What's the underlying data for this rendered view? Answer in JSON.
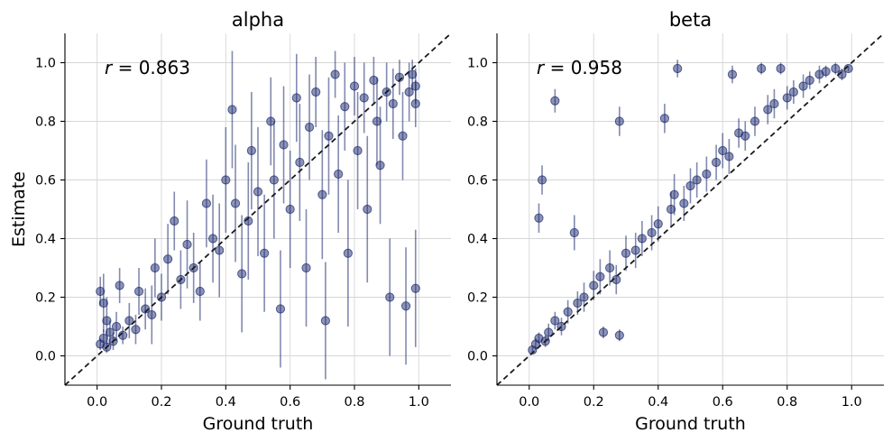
{
  "colors": {
    "points": "#1c2a6e",
    "identity_line": "#1a1a1a",
    "grid": "#d6d6d6"
  },
  "chart_data": [
    {
      "type": "scatter",
      "title": "alpha",
      "xlabel": "Ground truth",
      "ylabel": "Estimate",
      "xlim": [
        -0.1,
        1.1
      ],
      "ylim": [
        -0.1,
        1.1
      ],
      "xticks": [
        "0.0",
        "0.2",
        "0.4",
        "0.6",
        "0.8",
        "1.0"
      ],
      "yticks": [
        "0.0",
        "0.2",
        "0.4",
        "0.6",
        "0.8",
        "1.0"
      ],
      "grid": true,
      "identity_line": true,
      "annotation": {
        "var": "r",
        "text": " = 0.863"
      },
      "points": [
        [
          0.01,
          0.22,
          0.05
        ],
        [
          0.01,
          0.04,
          0.02
        ],
        [
          0.02,
          0.18,
          0.1
        ],
        [
          0.02,
          0.06,
          0.03
        ],
        [
          0.03,
          0.12,
          0.08
        ],
        [
          0.03,
          0.03,
          0.02
        ],
        [
          0.04,
          0.08,
          0.04
        ],
        [
          0.05,
          0.05,
          0.03
        ],
        [
          0.06,
          0.1,
          0.05
        ],
        [
          0.07,
          0.24,
          0.06
        ],
        [
          0.08,
          0.07,
          0.03
        ],
        [
          0.1,
          0.12,
          0.06
        ],
        [
          0.12,
          0.09,
          0.05
        ],
        [
          0.13,
          0.22,
          0.08
        ],
        [
          0.15,
          0.16,
          0.07
        ],
        [
          0.17,
          0.14,
          0.1
        ],
        [
          0.18,
          0.3,
          0.1
        ],
        [
          0.2,
          0.2,
          0.08
        ],
        [
          0.22,
          0.33,
          0.12
        ],
        [
          0.24,
          0.46,
          0.1
        ],
        [
          0.26,
          0.26,
          0.1
        ],
        [
          0.28,
          0.38,
          0.15
        ],
        [
          0.3,
          0.3,
          0.12
        ],
        [
          0.32,
          0.22,
          0.1
        ],
        [
          0.34,
          0.52,
          0.15
        ],
        [
          0.36,
          0.4,
          0.15
        ],
        [
          0.38,
          0.36,
          0.16
        ],
        [
          0.4,
          0.6,
          0.18
        ],
        [
          0.42,
          0.84,
          0.2
        ],
        [
          0.43,
          0.52,
          0.2
        ],
        [
          0.45,
          0.28,
          0.2
        ],
        [
          0.47,
          0.46,
          0.2
        ],
        [
          0.48,
          0.7,
          0.2
        ],
        [
          0.5,
          0.56,
          0.22
        ],
        [
          0.52,
          0.35,
          0.2
        ],
        [
          0.54,
          0.8,
          0.15
        ],
        [
          0.55,
          0.6,
          0.2
        ],
        [
          0.57,
          0.16,
          0.2
        ],
        [
          0.58,
          0.72,
          0.2
        ],
        [
          0.6,
          0.5,
          0.2
        ],
        [
          0.62,
          0.88,
          0.15
        ],
        [
          0.63,
          0.66,
          0.2
        ],
        [
          0.65,
          0.3,
          0.2
        ],
        [
          0.66,
          0.78,
          0.18
        ],
        [
          0.68,
          0.9,
          0.12
        ],
        [
          0.7,
          0.55,
          0.22
        ],
        [
          0.71,
          0.12,
          0.2
        ],
        [
          0.72,
          0.75,
          0.2
        ],
        [
          0.74,
          0.96,
          0.08
        ],
        [
          0.75,
          0.62,
          0.2
        ],
        [
          0.77,
          0.85,
          0.15
        ],
        [
          0.78,
          0.35,
          0.25
        ],
        [
          0.8,
          0.92,
          0.1
        ],
        [
          0.81,
          0.7,
          0.2
        ],
        [
          0.83,
          0.88,
          0.12
        ],
        [
          0.84,
          0.5,
          0.25
        ],
        [
          0.86,
          0.94,
          0.08
        ],
        [
          0.87,
          0.8,
          0.15
        ],
        [
          0.88,
          0.65,
          0.2
        ],
        [
          0.9,
          0.9,
          0.1
        ],
        [
          0.91,
          0.2,
          0.2
        ],
        [
          0.92,
          0.86,
          0.12
        ],
        [
          0.94,
          0.95,
          0.06
        ],
        [
          0.95,
          0.75,
          0.15
        ],
        [
          0.96,
          0.17,
          0.2
        ],
        [
          0.97,
          0.9,
          0.1
        ],
        [
          0.98,
          0.96,
          0.05
        ],
        [
          0.99,
          0.23,
          0.2
        ],
        [
          0.99,
          0.86,
          0.08
        ],
        [
          0.99,
          0.92,
          0.06
        ]
      ]
    },
    {
      "type": "scatter",
      "title": "beta",
      "xlabel": "Ground truth",
      "ylabel": "",
      "xlim": [
        -0.1,
        1.1
      ],
      "ylim": [
        -0.1,
        1.1
      ],
      "xticks": [
        "0.0",
        "0.2",
        "0.4",
        "0.6",
        "0.8",
        "1.0"
      ],
      "yticks": [
        "0.0",
        "0.2",
        "0.4",
        "0.6",
        "0.8",
        "1.0"
      ],
      "grid": true,
      "identity_line": true,
      "annotation": {
        "var": "r",
        "text": " = 0.958"
      },
      "points": [
        [
          0.01,
          0.02,
          0.01
        ],
        [
          0.02,
          0.04,
          0.02
        ],
        [
          0.03,
          0.06,
          0.02
        ],
        [
          0.03,
          0.47,
          0.05
        ],
        [
          0.04,
          0.6,
          0.05
        ],
        [
          0.05,
          0.05,
          0.02
        ],
        [
          0.06,
          0.08,
          0.03
        ],
        [
          0.08,
          0.87,
          0.04
        ],
        [
          0.08,
          0.12,
          0.03
        ],
        [
          0.1,
          0.1,
          0.03
        ],
        [
          0.12,
          0.15,
          0.04
        ],
        [
          0.14,
          0.42,
          0.06
        ],
        [
          0.15,
          0.18,
          0.04
        ],
        [
          0.17,
          0.2,
          0.05
        ],
        [
          0.2,
          0.24,
          0.05
        ],
        [
          0.22,
          0.27,
          0.06
        ],
        [
          0.23,
          0.08,
          0.02
        ],
        [
          0.25,
          0.3,
          0.06
        ],
        [
          0.27,
          0.26,
          0.05
        ],
        [
          0.28,
          0.07,
          0.02
        ],
        [
          0.28,
          0.8,
          0.05
        ],
        [
          0.3,
          0.35,
          0.06
        ],
        [
          0.33,
          0.36,
          0.06
        ],
        [
          0.35,
          0.4,
          0.06
        ],
        [
          0.38,
          0.42,
          0.06
        ],
        [
          0.4,
          0.45,
          0.06
        ],
        [
          0.42,
          0.81,
          0.05
        ],
        [
          0.44,
          0.5,
          0.06
        ],
        [
          0.45,
          0.55,
          0.07
        ],
        [
          0.46,
          0.98,
          0.03
        ],
        [
          0.48,
          0.52,
          0.06
        ],
        [
          0.5,
          0.58,
          0.06
        ],
        [
          0.52,
          0.6,
          0.06
        ],
        [
          0.55,
          0.62,
          0.06
        ],
        [
          0.58,
          0.66,
          0.06
        ],
        [
          0.6,
          0.7,
          0.06
        ],
        [
          0.62,
          0.68,
          0.06
        ],
        [
          0.63,
          0.96,
          0.03
        ],
        [
          0.65,
          0.76,
          0.05
        ],
        [
          0.67,
          0.75,
          0.05
        ],
        [
          0.7,
          0.8,
          0.05
        ],
        [
          0.72,
          0.98,
          0.02
        ],
        [
          0.74,
          0.84,
          0.05
        ],
        [
          0.76,
          0.86,
          0.05
        ],
        [
          0.78,
          0.98,
          0.02
        ],
        [
          0.8,
          0.88,
          0.04
        ],
        [
          0.82,
          0.9,
          0.04
        ],
        [
          0.85,
          0.92,
          0.04
        ],
        [
          0.87,
          0.94,
          0.03
        ],
        [
          0.9,
          0.96,
          0.03
        ],
        [
          0.92,
          0.97,
          0.02
        ],
        [
          0.95,
          0.98,
          0.02
        ],
        [
          0.97,
          0.96,
          0.02
        ],
        [
          0.99,
          0.98,
          0.01
        ]
      ]
    }
  ]
}
